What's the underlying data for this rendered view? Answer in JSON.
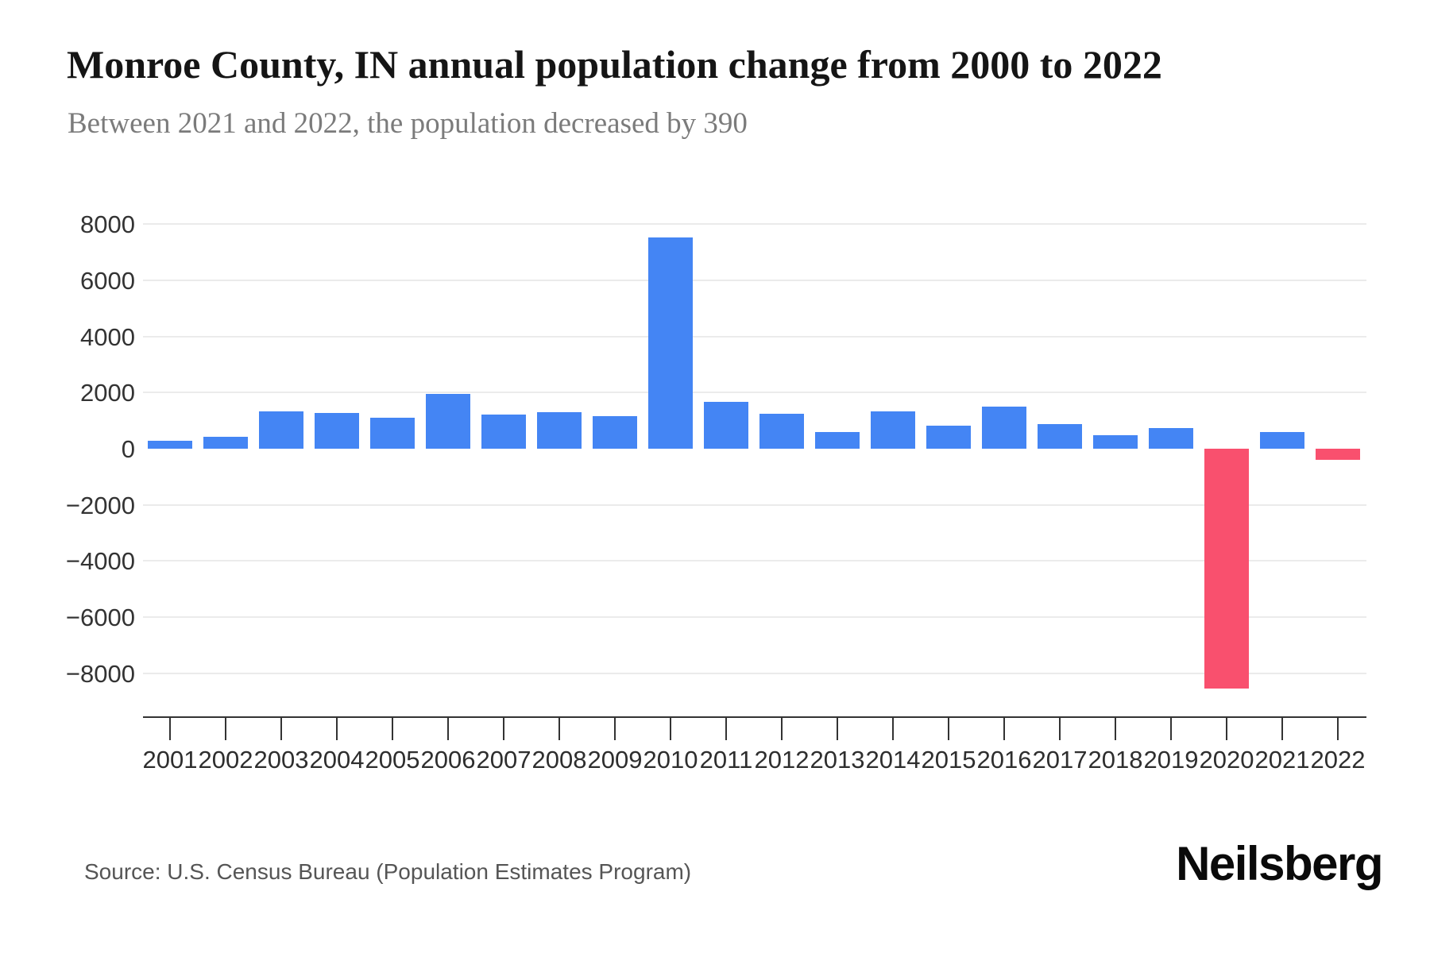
{
  "header": {
    "title": "Monroe County, IN annual population change from 2000 to 2022",
    "subtitle": "Between 2021 and 2022, the population decreased by 390"
  },
  "footer": {
    "source": "Source: U.S. Census Bureau (Population Estimates Program)",
    "logo": "Neilsberg"
  },
  "colors": {
    "positive_bar": "#4485f4",
    "negative_bar": "#f9506e",
    "gridline": "#ebebeb",
    "axis": "#333333"
  },
  "chart_data": {
    "type": "bar",
    "title": "Monroe County, IN annual population change from 2000 to 2022",
    "subtitle": "Between 2021 and 2022, the population decreased by 390",
    "xlabel": "",
    "ylabel": "",
    "categories": [
      "2001",
      "2002",
      "2003",
      "2004",
      "2005",
      "2006",
      "2007",
      "2008",
      "2009",
      "2010",
      "2011",
      "2012",
      "2013",
      "2014",
      "2015",
      "2016",
      "2017",
      "2018",
      "2019",
      "2020",
      "2021",
      "2022"
    ],
    "values": [
      280,
      430,
      1340,
      1270,
      1100,
      1950,
      1230,
      1290,
      1160,
      7520,
      1670,
      1250,
      590,
      1340,
      830,
      1490,
      870,
      470,
      740,
      -8560,
      590,
      -390
    ],
    "ylim": [
      -8000,
      8000
    ],
    "ytick_values": [
      8000,
      6000,
      4000,
      2000,
      0,
      -2000,
      -4000,
      -6000,
      -8000
    ],
    "ytick_labels": [
      "8000",
      "6000",
      "4000",
      "2000",
      "0",
      "−2000",
      "−4000",
      "−6000",
      "−8000"
    ],
    "grid": "horizontal",
    "legend": "none",
    "bar_color_rule": "blue when positive, red when negative"
  }
}
